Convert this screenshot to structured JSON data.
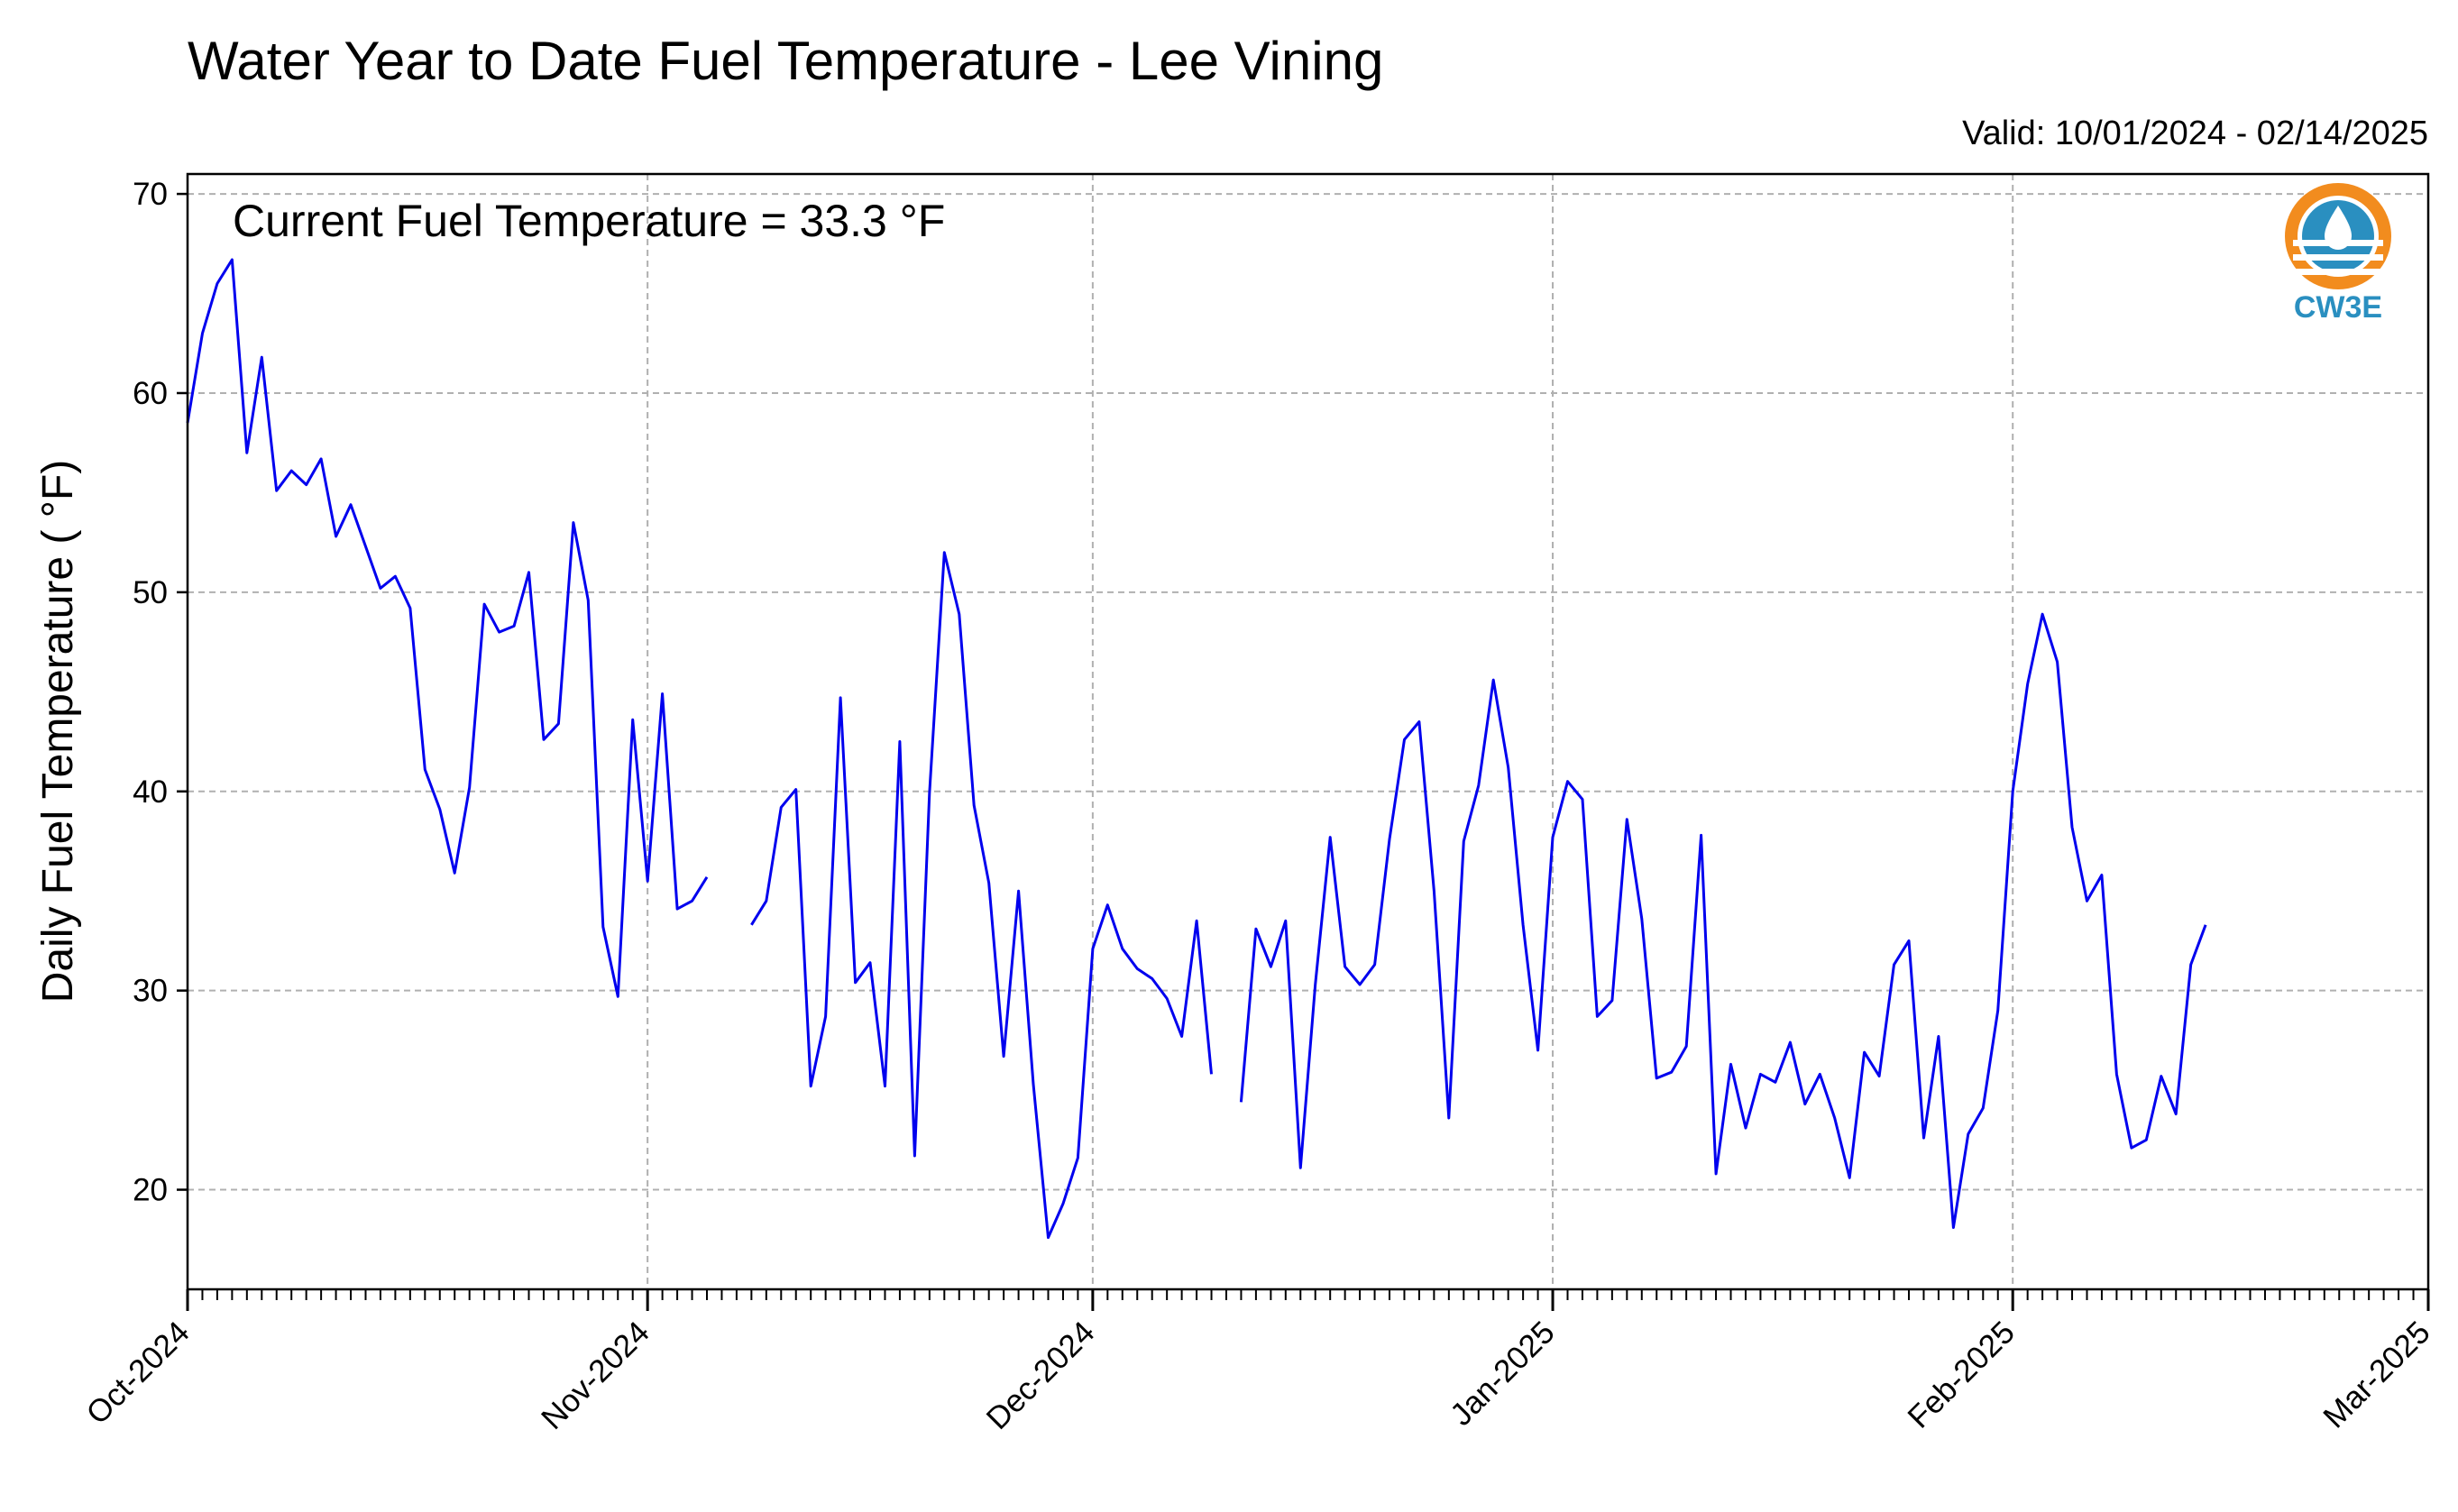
{
  "chart_data": {
    "type": "line",
    "title": "Water Year to Date Fuel Temperature - Lee Vining",
    "valid_label": "Valid: 10/01/2024 - 02/14/2025",
    "annotation": "Current Fuel Temperature = 33.3  °F",
    "xlabel": "",
    "ylabel": "Daily Fuel Temperature ( °F)",
    "xlim": [
      "2024-10-01",
      "2025-03-01"
    ],
    "ylim": [
      15,
      71
    ],
    "x_ticks": [
      {
        "date": "2024-10-01",
        "label": "Oct-2024"
      },
      {
        "date": "2024-11-01",
        "label": "Nov-2024"
      },
      {
        "date": "2024-12-01",
        "label": "Dec-2024"
      },
      {
        "date": "2025-01-01",
        "label": "Jan-2025"
      },
      {
        "date": "2025-02-01",
        "label": "Feb-2025"
      },
      {
        "date": "2025-03-01",
        "label": "Mar-2025"
      }
    ],
    "y_ticks": [
      20,
      30,
      40,
      50,
      60,
      70
    ],
    "grid": true,
    "line_color": "#0000ee",
    "start_date": "2024-10-01",
    "series": [
      {
        "values": [
          58.5,
          63.0,
          65.5,
          66.7,
          57.0,
          61.8,
          55.1,
          56.1,
          55.4,
          56.7,
          52.8,
          54.4,
          52.3,
          50.2,
          50.8,
          49.2,
          41.1,
          39.1,
          35.9,
          40.2,
          49.4,
          48.0,
          48.3,
          51.0,
          42.6,
          43.4,
          53.5,
          49.6,
          33.2,
          29.7,
          43.6,
          35.5,
          44.9,
          34.1,
          34.5,
          35.7,
          null,
          null,
          33.3,
          34.5,
          39.2,
          40.1,
          25.2,
          28.7,
          44.7,
          30.4,
          31.4,
          25.2,
          42.5,
          21.7,
          39.9,
          52.0,
          48.9,
          39.3,
          35.4,
          26.7,
          35.0,
          25.3,
          17.6,
          19.3,
          21.6,
          32.1,
          34.3,
          32.1,
          31.1,
          30.6,
          29.6,
          27.7,
          33.5,
          25.8,
          null,
          24.4,
          33.1,
          31.2,
          33.5,
          21.1,
          30.3,
          37.7,
          31.2,
          30.3,
          31.3,
          37.6,
          42.6,
          43.5,
          35.0,
          23.6,
          37.5,
          40.3,
          45.6,
          41.2,
          33.3,
          27.0,
          37.7,
          40.5,
          39.6,
          28.7,
          29.5,
          38.6,
          33.6,
          25.6,
          25.9,
          27.2,
          37.8,
          20.8,
          26.3,
          23.1,
          25.8,
          25.4,
          27.4,
          24.3,
          25.8,
          23.6,
          20.6,
          26.9,
          25.7,
          31.3,
          32.5,
          22.6,
          27.7,
          18.1,
          22.8,
          24.1,
          29.0,
          40.0,
          45.4,
          48.9,
          46.5,
          38.2,
          34.5,
          35.8,
          25.8,
          22.1,
          22.5,
          25.7,
          23.8,
          31.3,
          33.3
        ]
      }
    ]
  },
  "logo": {
    "text": "CW3E",
    "orange": "#f28c1e",
    "blue": "#2a8fc0"
  }
}
